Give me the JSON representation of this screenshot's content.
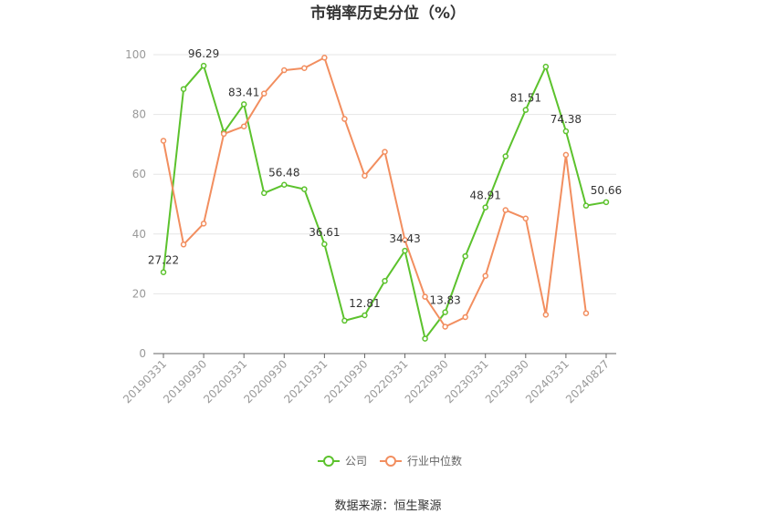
{
  "chart_data": {
    "type": "line",
    "title": "市销率历史分位（%）",
    "source": "数据来源：恒生聚源",
    "ylim": [
      0,
      100
    ],
    "yticks": [
      0,
      20,
      40,
      60,
      80,
      100
    ],
    "grid": true,
    "legend_position": "bottom",
    "x": [
      "20190331",
      "20190630",
      "20190930",
      "20191231",
      "20200331",
      "20200630",
      "20200930",
      "20201231",
      "20210331",
      "20210630",
      "20210930",
      "20211231",
      "20220331",
      "20220630",
      "20220930",
      "20221231",
      "20230331",
      "20230630",
      "20230930",
      "20231231",
      "20240331",
      "20240630",
      "20240827"
    ],
    "xtick_labels": [
      "20190331",
      "20190930",
      "20200331",
      "20200930",
      "20210331",
      "20210930",
      "20220331",
      "20220930",
      "20230331",
      "20230930",
      "20240331",
      "20240827"
    ],
    "series": [
      {
        "name": "公司",
        "color": "#5cc22d",
        "values": [
          27.22,
          88.5,
          96.29,
          74.0,
          83.41,
          53.7,
          56.48,
          55.0,
          36.61,
          11.0,
          12.81,
          24.3,
          34.43,
          5.0,
          13.83,
          32.6,
          48.91,
          66.0,
          81.51,
          96.0,
          74.38,
          49.5,
          50.66
        ],
        "labels": [
          "27.22",
          null,
          "96.29",
          null,
          "83.41",
          null,
          "56.48",
          null,
          "36.61",
          null,
          "12.81",
          null,
          "34.43",
          null,
          "13.83",
          null,
          "48.91",
          null,
          "81.51",
          null,
          "74.38",
          null,
          "50.66"
        ]
      },
      {
        "name": "行业中位数",
        "color": "#f28e5f",
        "values": [
          71.2,
          36.5,
          43.5,
          73.5,
          76.0,
          87.0,
          94.8,
          95.5,
          99.0,
          78.5,
          59.5,
          67.5,
          38.0,
          19.0,
          9.0,
          12.2,
          26.0,
          48.0,
          45.2,
          13.0,
          66.5,
          13.5,
          null
        ]
      }
    ]
  }
}
